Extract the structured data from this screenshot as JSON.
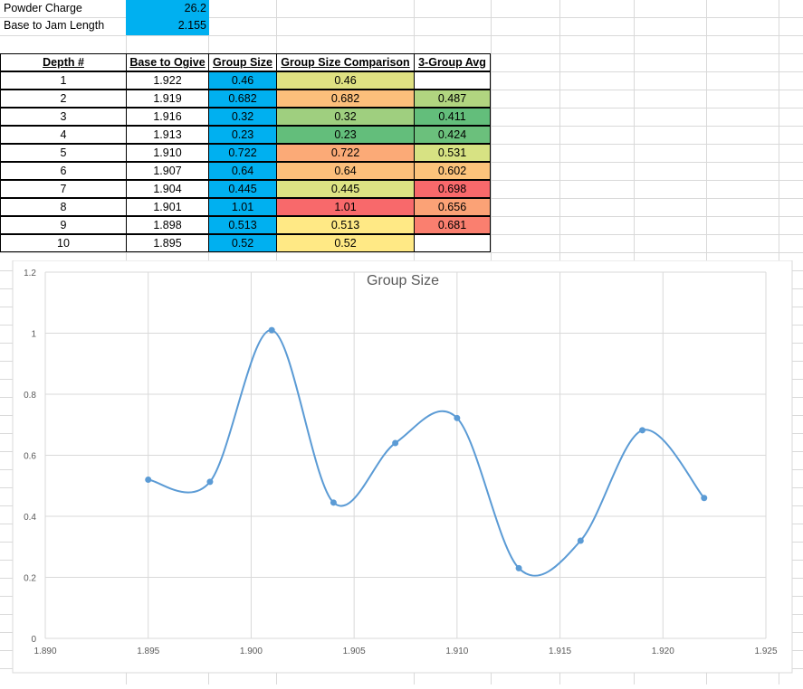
{
  "inputs": [
    {
      "label": "Powder Charge",
      "value": "26.2"
    },
    {
      "label": "Base to Jam Length",
      "value": "2.155"
    }
  ],
  "table": {
    "headers": [
      "Depth #",
      "Base to Ogive",
      "Group Size",
      "Group Size Comparison",
      "3-Group Avg"
    ],
    "rows": [
      {
        "depth": "1",
        "ogive": "1.922",
        "group": "0.46",
        "comparison": "0.46",
        "avg": ""
      },
      {
        "depth": "2",
        "ogive": "1.919",
        "group": "0.682",
        "comparison": "0.682",
        "avg": "0.487"
      },
      {
        "depth": "3",
        "ogive": "1.916",
        "group": "0.32",
        "comparison": "0.32",
        "avg": "0.411"
      },
      {
        "depth": "4",
        "ogive": "1.913",
        "group": "0.23",
        "comparison": "0.23",
        "avg": "0.424"
      },
      {
        "depth": "5",
        "ogive": "1.910",
        "group": "0.722",
        "comparison": "0.722",
        "avg": "0.531"
      },
      {
        "depth": "6",
        "ogive": "1.907",
        "group": "0.64",
        "comparison": "0.64",
        "avg": "0.602"
      },
      {
        "depth": "7",
        "ogive": "1.904",
        "group": "0.445",
        "comparison": "0.445",
        "avg": "0.698"
      },
      {
        "depth": "8",
        "ogive": "1.901",
        "group": "1.01",
        "comparison": "1.01",
        "avg": "0.656"
      },
      {
        "depth": "9",
        "ogive": "1.898",
        "group": "0.513",
        "comparison": "0.513",
        "avg": "0.681"
      },
      {
        "depth": "10",
        "ogive": "1.895",
        "group": "0.52",
        "comparison": "0.52",
        "avg": ""
      }
    ],
    "comparison_colors": [
      "#dfe182",
      "#fcbf7b",
      "#9fcf7f",
      "#63be7b",
      "#fbaa77",
      "#fcbf7b",
      "#dde383",
      "#f8696b",
      "#ffe985",
      "#ffe985"
    ],
    "avg_colors": [
      "#ffffff",
      "#b1d580",
      "#63be7b",
      "#6bc07c",
      "#d7e283",
      "#fcc37b",
      "#f8696b",
      "#fba276",
      "#fa7f6f",
      "#ffffff"
    ],
    "blue_fill": "#00b0f0"
  },
  "chart_data": {
    "type": "line",
    "title": "Group Size",
    "smooth": true,
    "markers": true,
    "x": [
      1.922,
      1.919,
      1.916,
      1.913,
      1.91,
      1.907,
      1.904,
      1.901,
      1.898,
      1.895
    ],
    "series": [
      {
        "values": [
          0.46,
          0.682,
          0.32,
          0.23,
          0.722,
          0.64,
          0.445,
          1.01,
          0.513,
          0.52
        ]
      }
    ],
    "xlim": [
      1.89,
      1.925
    ],
    "ylim": [
      0,
      1.2
    ],
    "xticks": [
      "1.890",
      "1.895",
      "1.900",
      "1.905",
      "1.910",
      "1.915",
      "1.920",
      "1.925"
    ],
    "yticks": [
      "0",
      "0.2",
      "0.4",
      "0.6",
      "0.8",
      "1",
      "1.2"
    ],
    "grid": true,
    "legend": "none",
    "line_color": "#5b9bd5"
  }
}
